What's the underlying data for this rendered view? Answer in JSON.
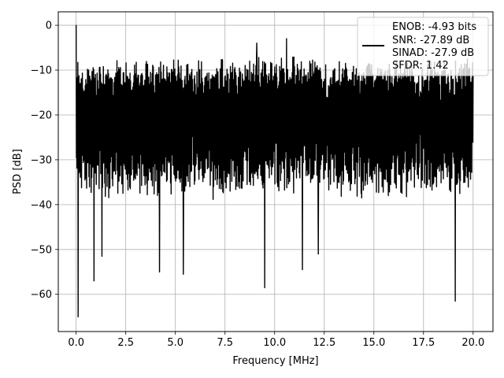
{
  "chart_data": {
    "type": "line",
    "title": "",
    "xlabel": "Frequency [MHz]",
    "ylabel": "PSD [dB]",
    "xlim": [
      -0.9,
      21.0
    ],
    "ylim": [
      -68.3,
      3.0
    ],
    "xticks": [
      0.0,
      2.5,
      5.0,
      7.5,
      10.0,
      12.5,
      15.0,
      17.5,
      20.0
    ],
    "xtick_labels": [
      "0.0",
      "2.5",
      "5.0",
      "7.5",
      "10.0",
      "12.5",
      "15.0",
      "17.5",
      "20.0"
    ],
    "yticks": [
      0,
      -10,
      -20,
      -30,
      -40,
      -50,
      -60
    ],
    "ytick_labels": [
      "0",
      "−10",
      "−20",
      "−30",
      "−40",
      "−50",
      "−60"
    ],
    "grid": true,
    "legend_position": "top-right",
    "legend_lines": [
      "ENOB: -4.93 bits",
      "SNR: -27.89 dB",
      "SINAD: -27.9 dB",
      "SFDR: 1.42"
    ],
    "series": [
      {
        "color": "#000000",
        "x_range": [
          0.0,
          20.0
        ],
        "noise_floor_db": -20,
        "envelope_top_db": -9,
        "envelope_bottom_db": -36,
        "peaks": [
          {
            "x": 0.0,
            "y": 0.0
          },
          {
            "x": 10.6,
            "y": -3.0
          },
          {
            "x": 9.1,
            "y": -4.0
          }
        ],
        "dips": [
          {
            "x": 0.1,
            "y": -65.0
          },
          {
            "x": 0.9,
            "y": -57.0
          },
          {
            "x": 1.3,
            "y": -51.5
          },
          {
            "x": 4.2,
            "y": -55.0
          },
          {
            "x": 5.4,
            "y": -55.5
          },
          {
            "x": 9.5,
            "y": -58.5
          },
          {
            "x": 11.4,
            "y": -54.5
          },
          {
            "x": 12.2,
            "y": -51.0
          },
          {
            "x": 19.1,
            "y": -61.5
          }
        ]
      }
    ]
  }
}
